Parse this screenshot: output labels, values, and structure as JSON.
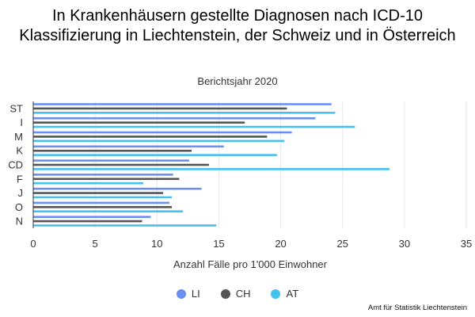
{
  "chart_data": {
    "type": "bar",
    "orientation": "horizontal",
    "title": "In Krankenhäusern gestellte Diagnosen nach ICD-10 Klassifizierung in Liechtenstein, der Schweiz und in Österreich",
    "subtitle": "Berichtsjahr 2020",
    "xlabel": "Anzahl Fälle pro 1'000 Einwohner",
    "ylabel": "",
    "xlim": [
      0,
      35
    ],
    "xticks": [
      "0",
      "5",
      "10",
      "15",
      "20",
      "25",
      "30",
      "35"
    ],
    "categories": [
      "ST",
      "I",
      "M",
      "K",
      "CD",
      "F",
      "J",
      "O",
      "N"
    ],
    "series": [
      {
        "name": "LI",
        "color": "#6a8ef2",
        "values": [
          24.1,
          22.8,
          20.9,
          15.4,
          12.6,
          11.3,
          13.6,
          11.0,
          9.5
        ]
      },
      {
        "name": "CH",
        "color": "#555555",
        "values": [
          20.5,
          17.1,
          18.9,
          12.8,
          14.2,
          11.8,
          10.5,
          11.2,
          8.8
        ]
      },
      {
        "name": "AT",
        "color": "#44c1ee",
        "values": [
          24.4,
          26.0,
          20.3,
          19.7,
          28.8,
          8.9,
          11.2,
          12.1,
          14.8
        ]
      }
    ],
    "grid": true,
    "legend_position": "bottom"
  },
  "source": "Amt für Statistik Liechtenstein"
}
